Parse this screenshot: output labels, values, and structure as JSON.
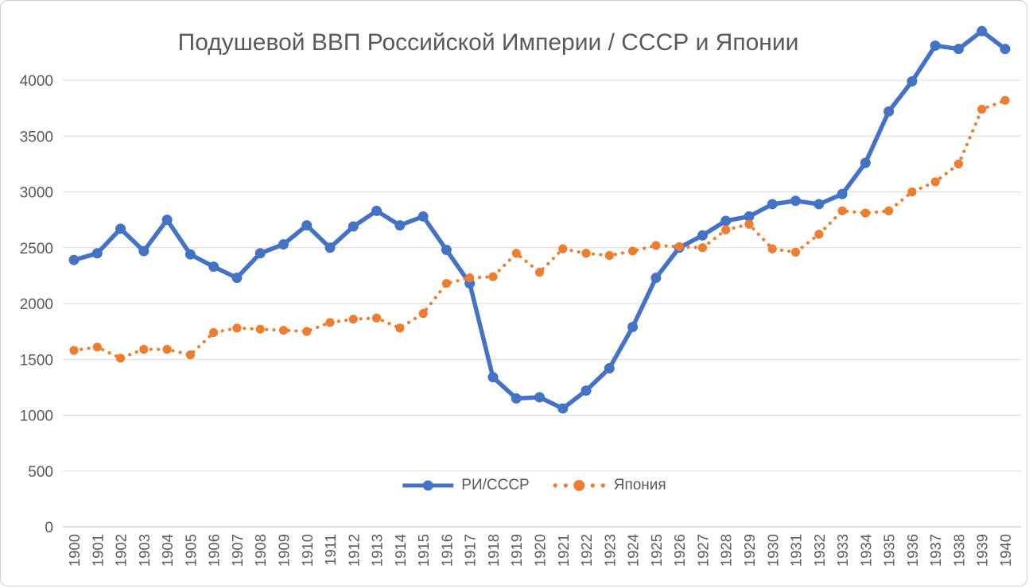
{
  "chart": {
    "colors": {
      "series_ri_ussr": "#4472C4",
      "series_japan": "#ED7D31",
      "title_text": "#595959",
      "axis_text": "#595959",
      "gridline": "#D9D9D9",
      "axis_line": "#BFBFBF",
      "background": "#FFFFFF"
    }
  },
  "chart_data": {
    "type": "line",
    "title": "Подушевой ВВП Российской Империи / СССР и Японии",
    "xlabel": "",
    "ylabel": "",
    "ylim": [
      0,
      4500
    ],
    "yticks": [
      0,
      500,
      1000,
      1500,
      2000,
      2500,
      3000,
      3500,
      4000
    ],
    "grid": true,
    "legend_position": "bottom-center-inside",
    "x": [
      1900,
      1901,
      1902,
      1903,
      1904,
      1905,
      1906,
      1907,
      1908,
      1909,
      1910,
      1911,
      1912,
      1913,
      1914,
      1915,
      1916,
      1917,
      1918,
      1919,
      1920,
      1921,
      1922,
      1923,
      1924,
      1925,
      1926,
      1927,
      1928,
      1929,
      1930,
      1931,
      1932,
      1933,
      1934,
      1935,
      1936,
      1937,
      1938,
      1939,
      1940
    ],
    "series": [
      {
        "name": "РИ/СССР",
        "color": "#4472C4",
        "line_style": "solid",
        "marker": "circle",
        "values": [
          2390,
          2450,
          2670,
          2470,
          2750,
          2440,
          2330,
          2230,
          2450,
          2530,
          2700,
          2500,
          2690,
          2830,
          2700,
          2780,
          2480,
          2180,
          1340,
          1150,
          1160,
          1060,
          1220,
          1420,
          1790,
          2230,
          2500,
          2610,
          2740,
          2780,
          2890,
          2920,
          2890,
          2980,
          3260,
          3720,
          3990,
          4310,
          4280,
          4440,
          4280
        ]
      },
      {
        "name": "Япония",
        "color": "#ED7D31",
        "line_style": "dotted",
        "marker": "circle",
        "values": [
          1580,
          1610,
          1510,
          1590,
          1590,
          1540,
          1740,
          1780,
          1770,
          1760,
          1750,
          1830,
          1860,
          1870,
          1780,
          1910,
          2180,
          2230,
          2240,
          2450,
          2280,
          2490,
          2450,
          2430,
          2470,
          2520,
          2510,
          2500,
          2660,
          2710,
          2490,
          2460,
          2620,
          2830,
          2810,
          2830,
          3000,
          3090,
          3250,
          3740,
          3820
        ]
      }
    ]
  }
}
